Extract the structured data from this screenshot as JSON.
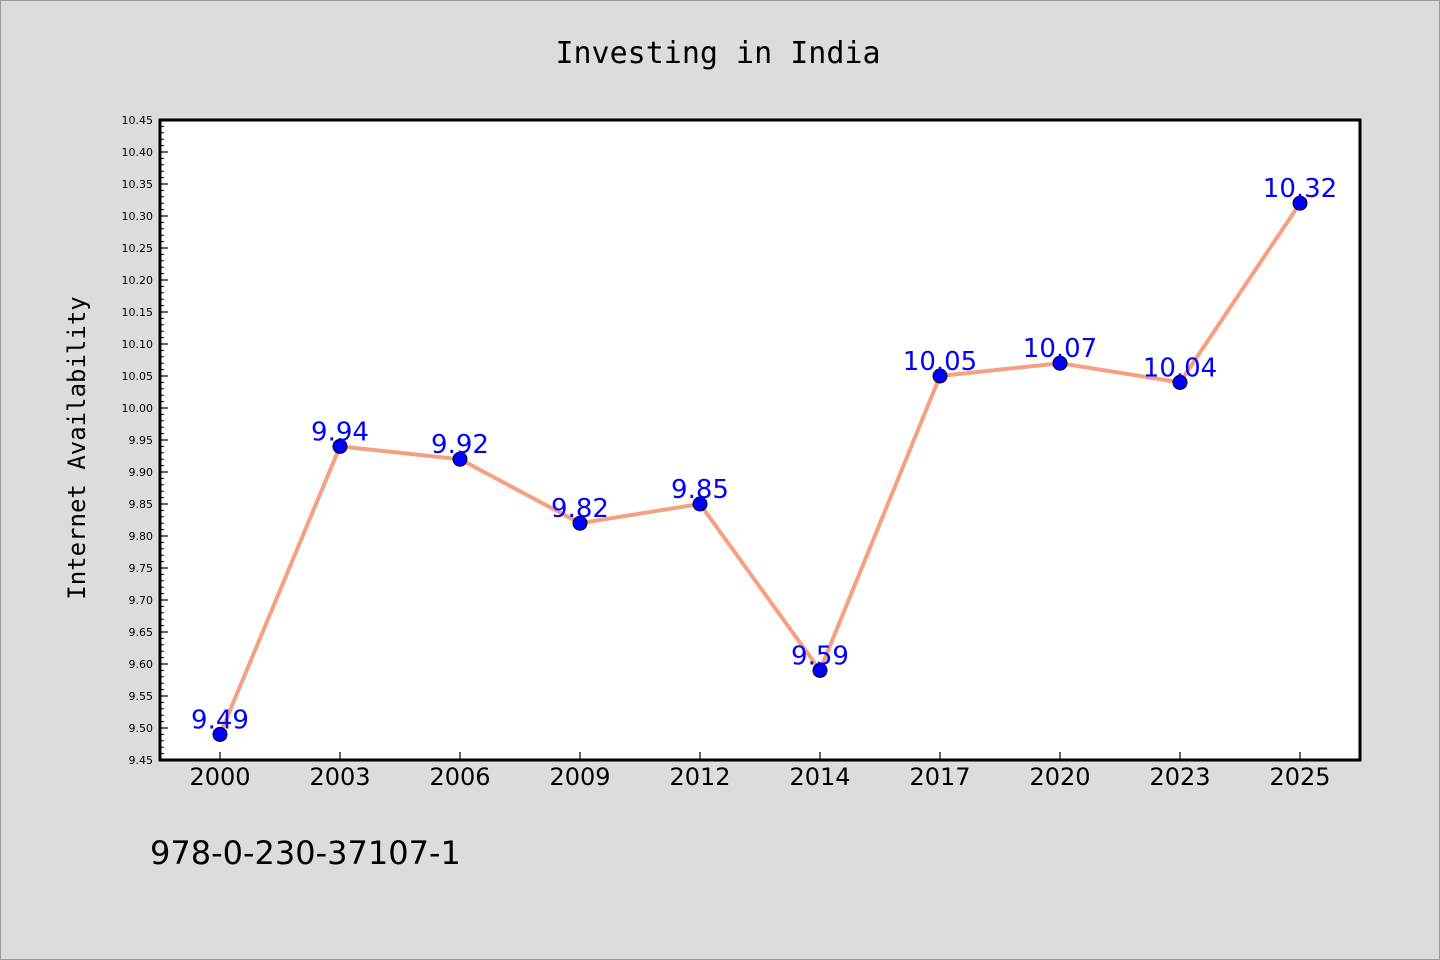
{
  "chart_data": {
    "type": "line",
    "title": "Investing in India",
    "xlabel": "",
    "ylabel": "Internet Availability",
    "categories": [
      "2000",
      "2003",
      "2006",
      "2009",
      "2012",
      "2014",
      "2017",
      "2020",
      "2023",
      "2025"
    ],
    "series": [
      {
        "values": [
          9.49,
          9.94,
          9.92,
          9.82,
          9.85,
          9.59,
          10.05,
          10.07,
          10.04,
          10.32
        ],
        "data_labels": [
          "9.49",
          "9.94",
          "9.92",
          "9.82",
          "9.85",
          "9.59",
          "10.05",
          "10.07",
          "10.04",
          "10.32"
        ]
      }
    ],
    "ylim": [
      9.45,
      10.45
    ],
    "yticks": [
      "9.45",
      "9.50",
      "9.55",
      "9.60",
      "9.65",
      "9.70",
      "9.75",
      "9.80",
      "9.85",
      "9.90",
      "9.95",
      "10.00",
      "10.05",
      "10.10",
      "10.15",
      "10.20",
      "10.25",
      "10.30",
      "10.35",
      "10.40",
      "10.45"
    ],
    "grid": false,
    "legend": "none",
    "colors": {
      "background": "#dcdcdc",
      "plot_background": "#ffffff",
      "line": "#f5a080",
      "marker": "#0000ff",
      "data_label": "#0000ff"
    }
  },
  "annotations": {
    "isbn": "978-0-230-37107-1"
  }
}
